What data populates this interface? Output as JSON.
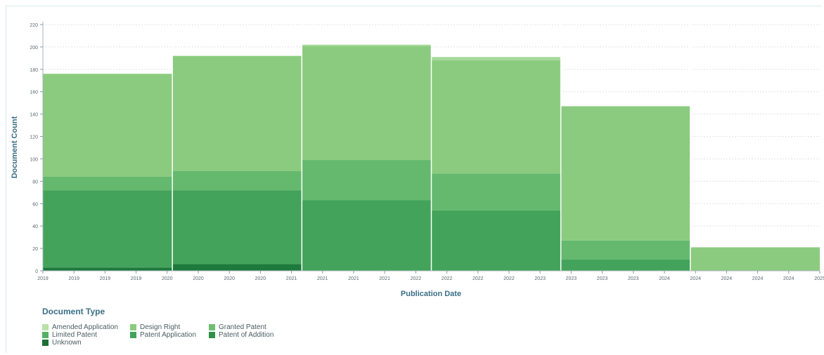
{
  "chart_data": {
    "type": "bar",
    "stacked": true,
    "xlabel": "Publication Date",
    "ylabel": "Document Count",
    "ylim": [
      0,
      220
    ],
    "yticks": [
      0,
      20,
      40,
      60,
      80,
      100,
      120,
      140,
      160,
      180,
      200,
      220
    ],
    "grid": true,
    "categories": [
      "2019",
      "2020",
      "2021",
      "2022",
      "2023",
      "2024"
    ],
    "x_tick_labels": [
      "2019",
      "2019",
      "2019",
      "2019",
      "2020",
      "2020",
      "2020",
      "2020",
      "2021",
      "2021",
      "2021",
      "2021",
      "2022",
      "2022",
      "2022",
      "2022",
      "2023",
      "2023",
      "2023",
      "2023",
      "2024",
      "2024",
      "2024",
      "2024",
      "2024",
      "2025"
    ],
    "series": [
      {
        "name": "Unknown",
        "color": "#1d7a3c",
        "values": [
          3,
          6,
          0,
          0,
          0,
          0
        ]
      },
      {
        "name": "Patent of Addition",
        "color": "#2e9049",
        "values": [
          0,
          0,
          0,
          0,
          0,
          0
        ]
      },
      {
        "name": "Patent Application",
        "color": "#43a35a",
        "values": [
          69,
          66,
          63,
          54,
          10,
          0
        ]
      },
      {
        "name": "Limited Patent",
        "color": "#55b065",
        "values": [
          0,
          0,
          0,
          0,
          0,
          0
        ]
      },
      {
        "name": "Granted Patent",
        "color": "#64b96f",
        "values": [
          12,
          17,
          36,
          33,
          17,
          0
        ]
      },
      {
        "name": "Design Right",
        "color": "#8bcb7f",
        "values": [
          92,
          103,
          102,
          101,
          120,
          21
        ]
      },
      {
        "name": "Amended Application",
        "color": "#a8d99b",
        "values": [
          0,
          0,
          1,
          3,
          0,
          0
        ]
      }
    ],
    "legend": {
      "title": "Document Type",
      "position": "bottom-left",
      "entries": [
        {
          "label": "Amended Application",
          "color": "#b9e2a8"
        },
        {
          "label": "Design Right",
          "color": "#8bcb7f"
        },
        {
          "label": "Granted Patent",
          "color": "#6dbd72"
        },
        {
          "label": "Limited Patent",
          "color": "#55b065"
        },
        {
          "label": "Patent Application",
          "color": "#43a35a"
        },
        {
          "label": "Patent of Addition",
          "color": "#2e9049"
        },
        {
          "label": "Unknown",
          "color": "#1d6f36"
        }
      ]
    }
  }
}
